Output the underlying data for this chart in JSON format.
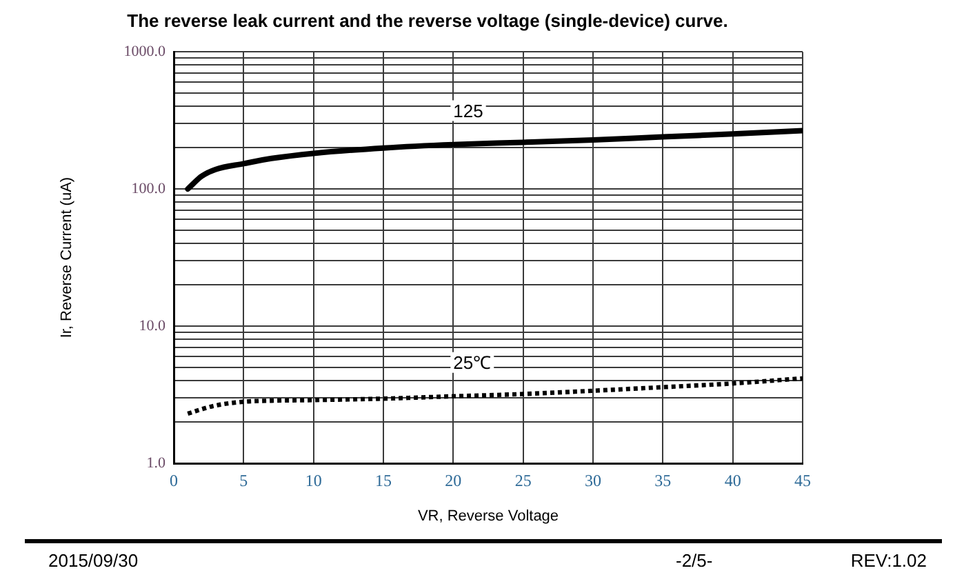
{
  "chart_data": {
    "type": "line",
    "title": "The reverse leak current and the reverse voltage (single-device) curve.",
    "xlabel": "VR, Reverse Voltage",
    "ylabel": "Ir, Reverse Current (uA)",
    "x": [
      1,
      2,
      3,
      5,
      7,
      10,
      15,
      20,
      25,
      30,
      35,
      40,
      45
    ],
    "series": [
      {
        "name": "125",
        "color": "#000000",
        "line_style": "solid",
        "values": [
          100,
          124,
          139,
          153,
          167,
          182,
          199,
          211,
          219,
          228,
          240,
          252,
          266
        ]
      },
      {
        "name": "25℃",
        "color": "#000000",
        "line_style": "dotted",
        "values": [
          2.3,
          2.48,
          2.64,
          2.81,
          2.86,
          2.89,
          2.96,
          3.08,
          3.2,
          3.38,
          3.59,
          3.82,
          4.16
        ]
      }
    ],
    "xlim": [
      0,
      45
    ],
    "xticks": [
      0,
      5,
      10,
      15,
      20,
      25,
      30,
      35,
      40,
      45
    ],
    "ylim": [
      1,
      1000
    ],
    "yticks": [
      {
        "value": 1,
        "label": "1.0"
      },
      {
        "value": 2,
        "label": null
      },
      {
        "value": 3,
        "label": null
      },
      {
        "value": 4,
        "label": null
      },
      {
        "value": 5,
        "label": null
      },
      {
        "value": 6,
        "label": null
      },
      {
        "value": 7,
        "label": null
      },
      {
        "value": 8,
        "label": null
      },
      {
        "value": 9,
        "label": null
      },
      {
        "value": 10,
        "label": "10.0"
      },
      {
        "value": 20,
        "label": null
      },
      {
        "value": 30,
        "label": null
      },
      {
        "value": 40,
        "label": null
      },
      {
        "value": 50,
        "label": null
      },
      {
        "value": 60,
        "label": null
      },
      {
        "value": 70,
        "label": null
      },
      {
        "value": 80,
        "label": null
      },
      {
        "value": 90,
        "label": null
      },
      {
        "value": 100,
        "label": "100.0"
      },
      {
        "value": 200,
        "label": null
      },
      {
        "value": 300,
        "label": null
      },
      {
        "value": 400,
        "label": null
      },
      {
        "value": 500,
        "label": null
      },
      {
        "value": 600,
        "label": null
      },
      {
        "value": 700,
        "label": null
      },
      {
        "value": 800,
        "label": null
      },
      {
        "value": 900,
        "label": null
      },
      {
        "value": 1000,
        "label": "1000.0"
      }
    ],
    "log": "y",
    "grid": true,
    "legend": false,
    "marker": "none",
    "annotations": [
      "2015/09/30",
      "-2/5-",
      "REV:1.02"
    ]
  }
}
